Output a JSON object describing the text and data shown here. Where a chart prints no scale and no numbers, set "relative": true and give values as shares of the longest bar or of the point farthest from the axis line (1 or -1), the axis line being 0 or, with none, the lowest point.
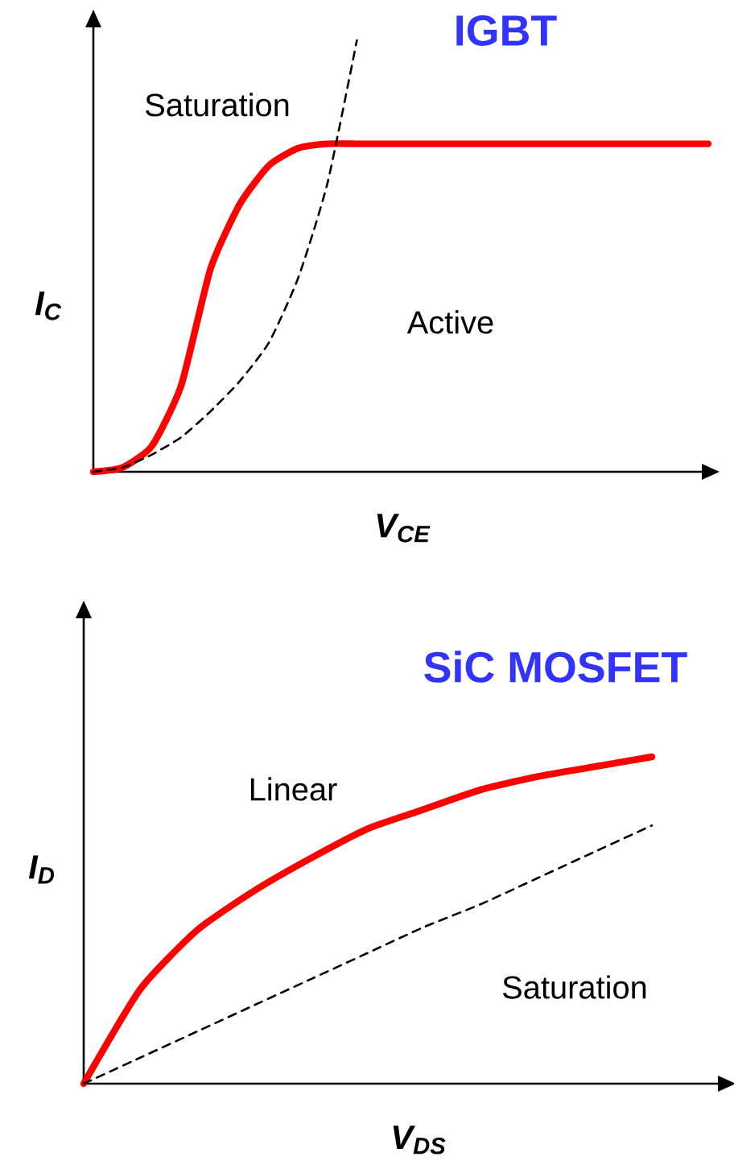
{
  "chart_data": [
    {
      "type": "line",
      "relative": true,
      "title": "IGBT",
      "xlabel": "V$_{CE}$",
      "ylabel": "I$_{C}$",
      "annotations": [
        "Saturation",
        "Active"
      ],
      "categories": [
        null,
        null,
        null,
        null,
        null,
        null,
        null,
        null,
        null,
        null,
        null,
        null,
        null,
        null,
        null,
        null,
        null,
        null,
        null,
        null,
        null,
        null
      ],
      "series": [
        {
          "color": "#ff0000",
          "line_style": "solid",
          "values": [
            0,
            0.01,
            0.06,
            0.2,
            0.47,
            0.62,
            0.71,
            0.75,
            0.76,
            0.76,
            0.76,
            0.76,
            0.76,
            0.76,
            0.76,
            0.76,
            0.76,
            0.76,
            0.76,
            0.76,
            0.76,
            0.76
          ]
        },
        {
          "color": "#000000",
          "line_style": "dashed",
          "values": [
            0,
            0.01,
            0.04,
            0.08,
            0.14,
            0.21,
            0.3,
            0.45,
            0.67,
            1,
            null,
            null,
            null,
            null,
            null,
            null,
            null,
            null,
            null,
            null,
            null,
            null
          ]
        }
      ]
    },
    {
      "type": "line",
      "relative": true,
      "title": "SiC MOSFET",
      "xlabel": "V$_{DS}$",
      "ylabel": "I$_{D}$",
      "annotations": [
        "Linear",
        "Saturation"
      ],
      "categories": [
        null,
        null,
        null,
        null,
        null,
        null,
        null,
        null,
        null,
        null,
        null
      ],
      "series": [
        {
          "color": "#ff0000",
          "line_style": "solid",
          "values": [
            0,
            0.29,
            0.47,
            0.59,
            0.69,
            0.78,
            0.84,
            0.9,
            0.94,
            0.97,
            1
          ]
        },
        {
          "color": "#000000",
          "line_style": "dashed",
          "values": [
            0,
            0.08,
            0.16,
            0.24,
            0.32,
            0.4,
            0.48,
            0.55,
            0.63,
            0.71,
            0.79
          ]
        }
      ]
    }
  ]
}
